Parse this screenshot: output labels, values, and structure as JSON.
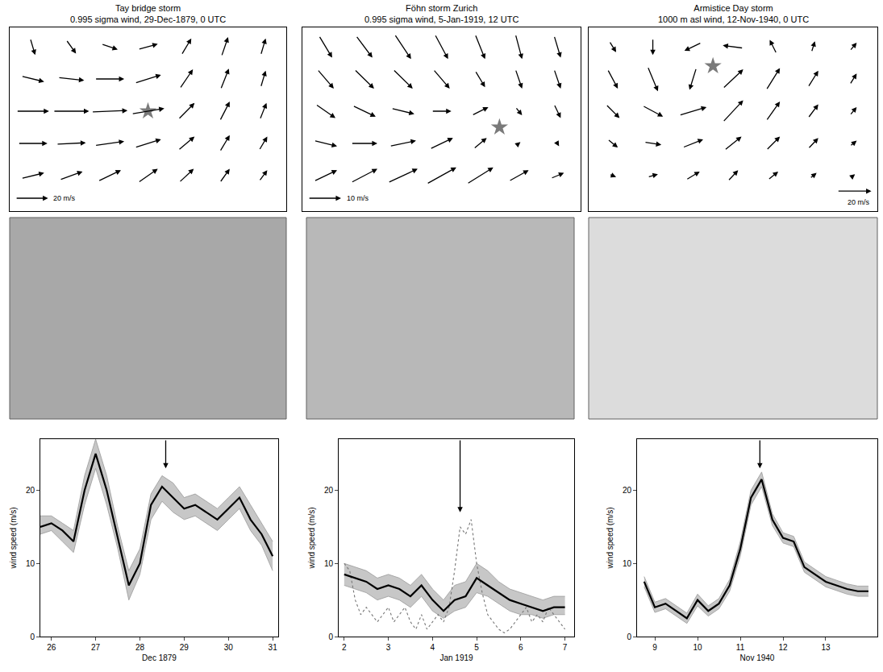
{
  "chart_data": [
    {
      "type": "quiver",
      "title": "Tay bridge storm",
      "subtitle": "0.995 sigma wind, 29-Dec-1879, 0 UTC",
      "xlim": [
        -0.6,
        6.6
      ],
      "ylim": [
        -1.1,
        4.6
      ],
      "tick_labels": false,
      "grid_x": [
        0,
        1,
        2,
        3,
        4,
        5,
        6
      ],
      "grid_y": [
        4,
        3,
        2,
        1,
        0
      ],
      "u": [
        [
          3,
          6,
          10,
          12,
          6,
          4,
          3
        ],
        [
          14,
          16,
          18,
          16,
          8,
          5,
          3
        ],
        [
          20,
          22,
          22,
          20,
          10,
          6,
          4
        ],
        [
          18,
          18,
          18,
          16,
          10,
          6,
          5
        ],
        [
          14,
          14,
          14,
          12,
          9,
          6,
          5
        ]
      ],
      "v": [
        [
          -12,
          -10,
          -4,
          4,
          12,
          14,
          12
        ],
        [
          -4,
          -2,
          0,
          6,
          14,
          15,
          12
        ],
        [
          0,
          0,
          1,
          4,
          12,
          14,
          12
        ],
        [
          0,
          1,
          3,
          6,
          10,
          12,
          10
        ],
        [
          4,
          6,
          8,
          10,
          10,
          10,
          8
        ]
      ],
      "reference_vector": {
        "value": 20,
        "label": "20 m/s"
      },
      "star": [
        3,
        2
      ],
      "color": "#000000"
    },
    {
      "type": "quiver",
      "title": "Föhn storm Zurich",
      "subtitle": "0.995 sigma wind, 5-Jan-1919, 12 UTC",
      "xlim": [
        -0.6,
        6.6
      ],
      "ylim": [
        -1.1,
        4.6
      ],
      "tick_labels": false,
      "grid_x": [
        0,
        1,
        2,
        3,
        4,
        5,
        6
      ],
      "grid_y": [
        4,
        3,
        2,
        1,
        0
      ],
      "u": [
        [
          4,
          5,
          5,
          4,
          3,
          2,
          2
        ],
        [
          5,
          6,
          6,
          5,
          3,
          2,
          2
        ],
        [
          6,
          7,
          7,
          6,
          5,
          2,
          2
        ],
        [
          7,
          8,
          8,
          7,
          4,
          1,
          1
        ],
        [
          7,
          8,
          9,
          9,
          8,
          6,
          4
        ]
      ],
      "v": [
        [
          -8,
          -8,
          -9,
          -9,
          -9,
          -9,
          -8
        ],
        [
          -7,
          -7,
          -7,
          -7,
          -6,
          -7,
          -7
        ],
        [
          -5,
          -4,
          -2,
          0,
          3,
          -3,
          -5
        ],
        [
          -2,
          0,
          2,
          4,
          4,
          1,
          -2
        ],
        [
          4,
          5,
          5,
          6,
          6,
          4,
          2
        ]
      ],
      "reference_vector": {
        "value": 10,
        "label": "10 m/s"
      },
      "star": [
        4.5,
        1.5
      ],
      "color": "#000000"
    },
    {
      "type": "quiver",
      "title": "Armistice Day storm",
      "subtitle": "1000 m asl wind, 12-Nov-1940, 0 UTC",
      "xlim": [
        -0.6,
        6.6
      ],
      "ylim": [
        -1.1,
        4.6
      ],
      "tick_labels": false,
      "grid_x": [
        0,
        1,
        2,
        3,
        4,
        5,
        6
      ],
      "grid_y": [
        4,
        3,
        2,
        1,
        0
      ],
      "u": [
        [
          4,
          0,
          -10,
          -12,
          -4,
          2,
          4
        ],
        [
          6,
          6,
          -4,
          12,
          8,
          6,
          4
        ],
        [
          8,
          12,
          16,
          12,
          8,
          6,
          4
        ],
        [
          6,
          10,
          12,
          10,
          8,
          6,
          4
        ],
        [
          4,
          6,
          8,
          6,
          6,
          4,
          2
        ]
      ],
      "v": [
        [
          -8,
          -12,
          -6,
          2,
          10,
          8,
          6
        ],
        [
          -14,
          -18,
          -16,
          14,
          16,
          12,
          8
        ],
        [
          -10,
          -8,
          6,
          16,
          14,
          10,
          6
        ],
        [
          -6,
          -2,
          6,
          10,
          10,
          8,
          4
        ],
        [
          -2,
          2,
          6,
          8,
          6,
          4,
          2
        ]
      ],
      "reference_vector": {
        "value": 20,
        "label": "20 m/s"
      },
      "star": [
        2.5,
        3.4
      ],
      "color": "#000000"
    },
    {
      "type": "line",
      "xlabel": "Dec 1879",
      "ylabel": "wind speed (m/s)",
      "xlim": [
        "1879-12-25 18:00",
        "1879-12-31 03:00"
      ],
      "ylim": [
        0,
        27
      ],
      "xticks": [
        {
          "value": "1879-12-26",
          "label": "26"
        },
        {
          "value": "1879-12-27",
          "label": "27"
        },
        {
          "value": "1879-12-28",
          "label": "28"
        },
        {
          "value": "1879-12-29",
          "label": "29"
        },
        {
          "value": "1879-12-30",
          "label": "30"
        },
        {
          "value": "1879-12-31",
          "label": "31"
        }
      ],
      "yticks": [
        0,
        10,
        20
      ],
      "x": [
        "1879-12-25 18:00",
        "1879-12-26 00:00",
        "1879-12-26 06:00",
        "1879-12-26 12:00",
        "1879-12-26 18:00",
        "1879-12-27 00:00",
        "1879-12-27 06:00",
        "1879-12-27 12:00",
        "1879-12-27 18:00",
        "1879-12-28 00:00",
        "1879-12-28 06:00",
        "1879-12-28 12:00",
        "1879-12-28 18:00",
        "1879-12-29 00:00",
        "1879-12-29 06:00",
        "1879-12-29 12:00",
        "1879-12-29 18:00",
        "1879-12-30 00:00",
        "1879-12-30 06:00",
        "1879-12-30 12:00",
        "1879-12-30 18:00",
        "1879-12-31 00:00"
      ],
      "series": [
        {
          "type": "band",
          "color": "#999999",
          "low": [
            14,
            14.5,
            13,
            11.5,
            18,
            23,
            18,
            12,
            5,
            8.5,
            16,
            18.5,
            17,
            16,
            16.5,
            15.5,
            14.5,
            16,
            17.5,
            14.5,
            12.5,
            9
          ],
          "high": [
            16.5,
            16.5,
            15.5,
            14.5,
            22,
            27,
            22,
            15,
            9,
            12,
            19.5,
            22,
            21,
            19,
            19.5,
            18.5,
            17.5,
            19,
            20.5,
            18,
            15.5,
            13
          ]
        },
        {
          "type": "line",
          "color": "#000000",
          "line_style": "solid",
          "values": [
            15,
            15.5,
            14.5,
            13,
            20,
            25,
            20,
            13.5,
            7,
            10,
            18,
            20.5,
            19,
            17.5,
            18,
            17,
            16,
            17.5,
            19,
            16,
            14,
            11
          ]
        }
      ],
      "arrow": {
        "x": "1879-12-28 14:00",
        "y": 23
      }
    },
    {
      "type": "line",
      "xlabel": "Jan 1919",
      "ylabel": "wind speed (m/s)",
      "xlim": [
        "1919-01-01 21:00",
        "1919-01-07 05:00"
      ],
      "ylim": [
        0,
        27
      ],
      "xticks": [
        {
          "value": "1919-01-02",
          "label": "2"
        },
        {
          "value": "1919-01-03",
          "label": "3"
        },
        {
          "value": "1919-01-04",
          "label": "4"
        },
        {
          "value": "1919-01-05",
          "label": "5"
        },
        {
          "value": "1919-01-06",
          "label": "6"
        },
        {
          "value": "1919-01-07",
          "label": "7"
        }
      ],
      "yticks": [
        0,
        10,
        20
      ],
      "x": [
        "1919-01-02 00:00",
        "1919-01-02 06:00",
        "1919-01-02 12:00",
        "1919-01-02 18:00",
        "1919-01-03 00:00",
        "1919-01-03 06:00",
        "1919-01-03 12:00",
        "1919-01-03 18:00",
        "1919-01-04 00:00",
        "1919-01-04 06:00",
        "1919-01-04 12:00",
        "1919-01-04 18:00",
        "1919-01-05 00:00",
        "1919-01-05 06:00",
        "1919-01-05 12:00",
        "1919-01-05 18:00",
        "1919-01-06 00:00",
        "1919-01-06 06:00",
        "1919-01-06 12:00",
        "1919-01-06 18:00",
        "1919-01-07 00:00"
      ],
      "series": [
        {
          "type": "band",
          "color": "#999999",
          "low": [
            7,
            6.5,
            6,
            5,
            5.5,
            5,
            4,
            5.5,
            3.5,
            2.5,
            3.5,
            4,
            6,
            5.5,
            4.5,
            3.5,
            3,
            3,
            2.5,
            3,
            3
          ],
          "high": [
            10,
            9.5,
            9,
            8,
            8.5,
            8,
            7,
            8.5,
            6.5,
            5,
            7,
            7.5,
            10,
            9,
            7.5,
            6.5,
            6,
            5.5,
            5,
            5.5,
            5.5
          ]
        },
        {
          "type": "line",
          "color": "#777777",
          "line_style": "dotted",
          "x": [
            "1919-01-02 00:00",
            "1919-01-02 03:00",
            "1919-01-02 06:00",
            "1919-01-02 09:00",
            "1919-01-02 12:00",
            "1919-01-02 15:00",
            "1919-01-02 18:00",
            "1919-01-02 21:00",
            "1919-01-03 00:00",
            "1919-01-03 03:00",
            "1919-01-03 06:00",
            "1919-01-03 09:00",
            "1919-01-03 12:00",
            "1919-01-03 15:00",
            "1919-01-03 18:00",
            "1919-01-03 21:00",
            "1919-01-04 00:00",
            "1919-01-04 03:00",
            "1919-01-04 06:00",
            "1919-01-04 09:00",
            "1919-01-04 12:00",
            "1919-01-04 15:00",
            "1919-01-04 18:00",
            "1919-01-04 21:00",
            "1919-01-05 00:00",
            "1919-01-05 03:00",
            "1919-01-05 06:00",
            "1919-01-05 09:00",
            "1919-01-05 12:00",
            "1919-01-05 15:00",
            "1919-01-05 18:00",
            "1919-01-05 21:00",
            "1919-01-06 00:00",
            "1919-01-06 03:00",
            "1919-01-06 06:00",
            "1919-01-06 09:00",
            "1919-01-06 12:00",
            "1919-01-06 15:00",
            "1919-01-06 18:00",
            "1919-01-06 21:00",
            "1919-01-07 00:00"
          ],
          "values": [
            10,
            9,
            5,
            3,
            4,
            3,
            2,
            3,
            4,
            2,
            3,
            4,
            2,
            1,
            3,
            1,
            2,
            3,
            2,
            4,
            9,
            15,
            14,
            16,
            10,
            6,
            3,
            2,
            1,
            0.5,
            1,
            2,
            3,
            4,
            2,
            3,
            2,
            4,
            3,
            2,
            1
          ]
        },
        {
          "type": "line",
          "color": "#000000",
          "line_style": "solid",
          "values": [
            8.5,
            8,
            7.5,
            6.5,
            7,
            6.5,
            5.5,
            7,
            5,
            3.5,
            5,
            5.5,
            8,
            7,
            6,
            5,
            4.5,
            4,
            3.5,
            4,
            4
          ]
        }
      ],
      "arrow": {
        "x": "1919-01-04 15:00",
        "y": 17
      }
    },
    {
      "type": "line",
      "xlabel": "Nov 1940",
      "ylabel": "wind speed (m/s)",
      "xlim": [
        "1940-11-08 14:00",
        "1940-11-14 05:00"
      ],
      "ylim": [
        0,
        27
      ],
      "xticks": [
        {
          "value": "1940-11-09",
          "label": "9"
        },
        {
          "value": "1940-11-10",
          "label": "10"
        },
        {
          "value": "1940-11-11",
          "label": "11"
        },
        {
          "value": "1940-11-12",
          "label": "12"
        },
        {
          "value": "1940-11-13",
          "label": "13"
        }
      ],
      "yticks": [
        0,
        10,
        20
      ],
      "x": [
        "1940-11-08 18:00",
        "1940-11-09 00:00",
        "1940-11-09 06:00",
        "1940-11-09 12:00",
        "1940-11-09 18:00",
        "1940-11-10 00:00",
        "1940-11-10 06:00",
        "1940-11-10 12:00",
        "1940-11-10 18:00",
        "1940-11-11 00:00",
        "1940-11-11 06:00",
        "1940-11-11 12:00",
        "1940-11-11 18:00",
        "1940-11-12 00:00",
        "1940-11-12 06:00",
        "1940-11-12 12:00",
        "1940-11-12 18:00",
        "1940-11-13 00:00",
        "1940-11-13 06:00",
        "1940-11-13 12:00",
        "1940-11-13 18:00",
        "1940-11-14 00:00"
      ],
      "series": [
        {
          "type": "band",
          "color": "#999999",
          "low": [
            6.8,
            3.3,
            3.8,
            2.8,
            1.8,
            4.2,
            2.8,
            3.8,
            6.2,
            11,
            18,
            20.5,
            15.2,
            12.8,
            12.3,
            8.8,
            7.8,
            6.8,
            6.3,
            5.8,
            5.5,
            5.5
          ],
          "high": [
            8.2,
            4.7,
            5.2,
            4.2,
            3.2,
            5.8,
            4.2,
            5.2,
            7.8,
            13,
            20,
            22.5,
            16.8,
            14.2,
            13.7,
            10.2,
            9.2,
            8.2,
            7.7,
            7.2,
            6.9,
            6.9
          ]
        },
        {
          "type": "line",
          "color": "#000000",
          "line_style": "solid",
          "values": [
            7.5,
            4,
            4.5,
            3.5,
            2.5,
            5,
            3.5,
            4.5,
            7,
            12,
            19,
            21.5,
            16,
            13.5,
            13,
            9.5,
            8.5,
            7.5,
            7,
            6.5,
            6.2,
            6.2
          ]
        }
      ],
      "arrow": {
        "x": "1940-11-11 11:00",
        "y": 23
      }
    }
  ]
}
